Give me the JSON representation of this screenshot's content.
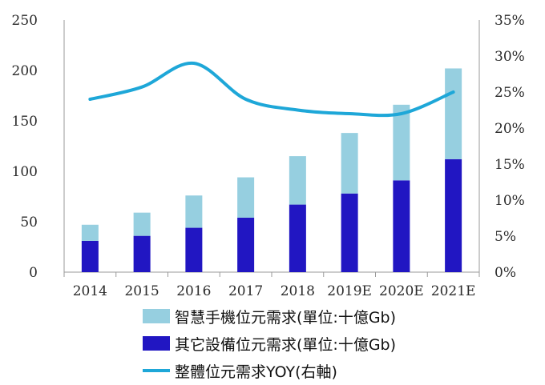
{
  "chart_data": {
    "type": "bar",
    "stacked": true,
    "categories": [
      "2014",
      "2015",
      "2016",
      "2017",
      "2018",
      "2019E",
      "2020E",
      "2021E"
    ],
    "series": [
      {
        "name": "其它設備位元需求(單位:十億Gb)",
        "kind": "bar",
        "axis": "left",
        "color": "#2116c2",
        "values": [
          31,
          36,
          44,
          54,
          67,
          78,
          91,
          112
        ]
      },
      {
        "name": "智慧手機位元需求(單位:十億Gb)",
        "kind": "bar",
        "axis": "left",
        "color": "#96cfe0",
        "values": [
          16,
          23,
          32,
          40,
          48,
          60,
          75,
          90
        ]
      },
      {
        "name": "整體位元需求YOY(右軸)",
        "kind": "line",
        "axis": "right",
        "color": "#1ea7d8",
        "values": [
          24,
          25.7,
          29,
          24,
          22.5,
          22,
          22,
          25
        ]
      }
    ],
    "y_left": {
      "min": 0,
      "max": 250,
      "ticks": [
        "0",
        "50",
        "100",
        "150",
        "200",
        "250"
      ]
    },
    "y_right": {
      "min": 0,
      "max": 35,
      "ticks": [
        "0%",
        "5%",
        "10%",
        "15%",
        "20%",
        "25%",
        "30%",
        "35%"
      ]
    },
    "grid": false,
    "legend_position": "bottom"
  },
  "legend": {
    "items": [
      {
        "label": "智慧手機位元需求(單位:十億Gb)",
        "color": "#96cfe0",
        "shape": "bar"
      },
      {
        "label": "其它設備位元需求(單位:十億Gb)",
        "color": "#2116c2",
        "shape": "bar"
      },
      {
        "label": "整體位元需求YOY(右軸)",
        "color": "#1ea7d8",
        "shape": "line"
      }
    ]
  }
}
